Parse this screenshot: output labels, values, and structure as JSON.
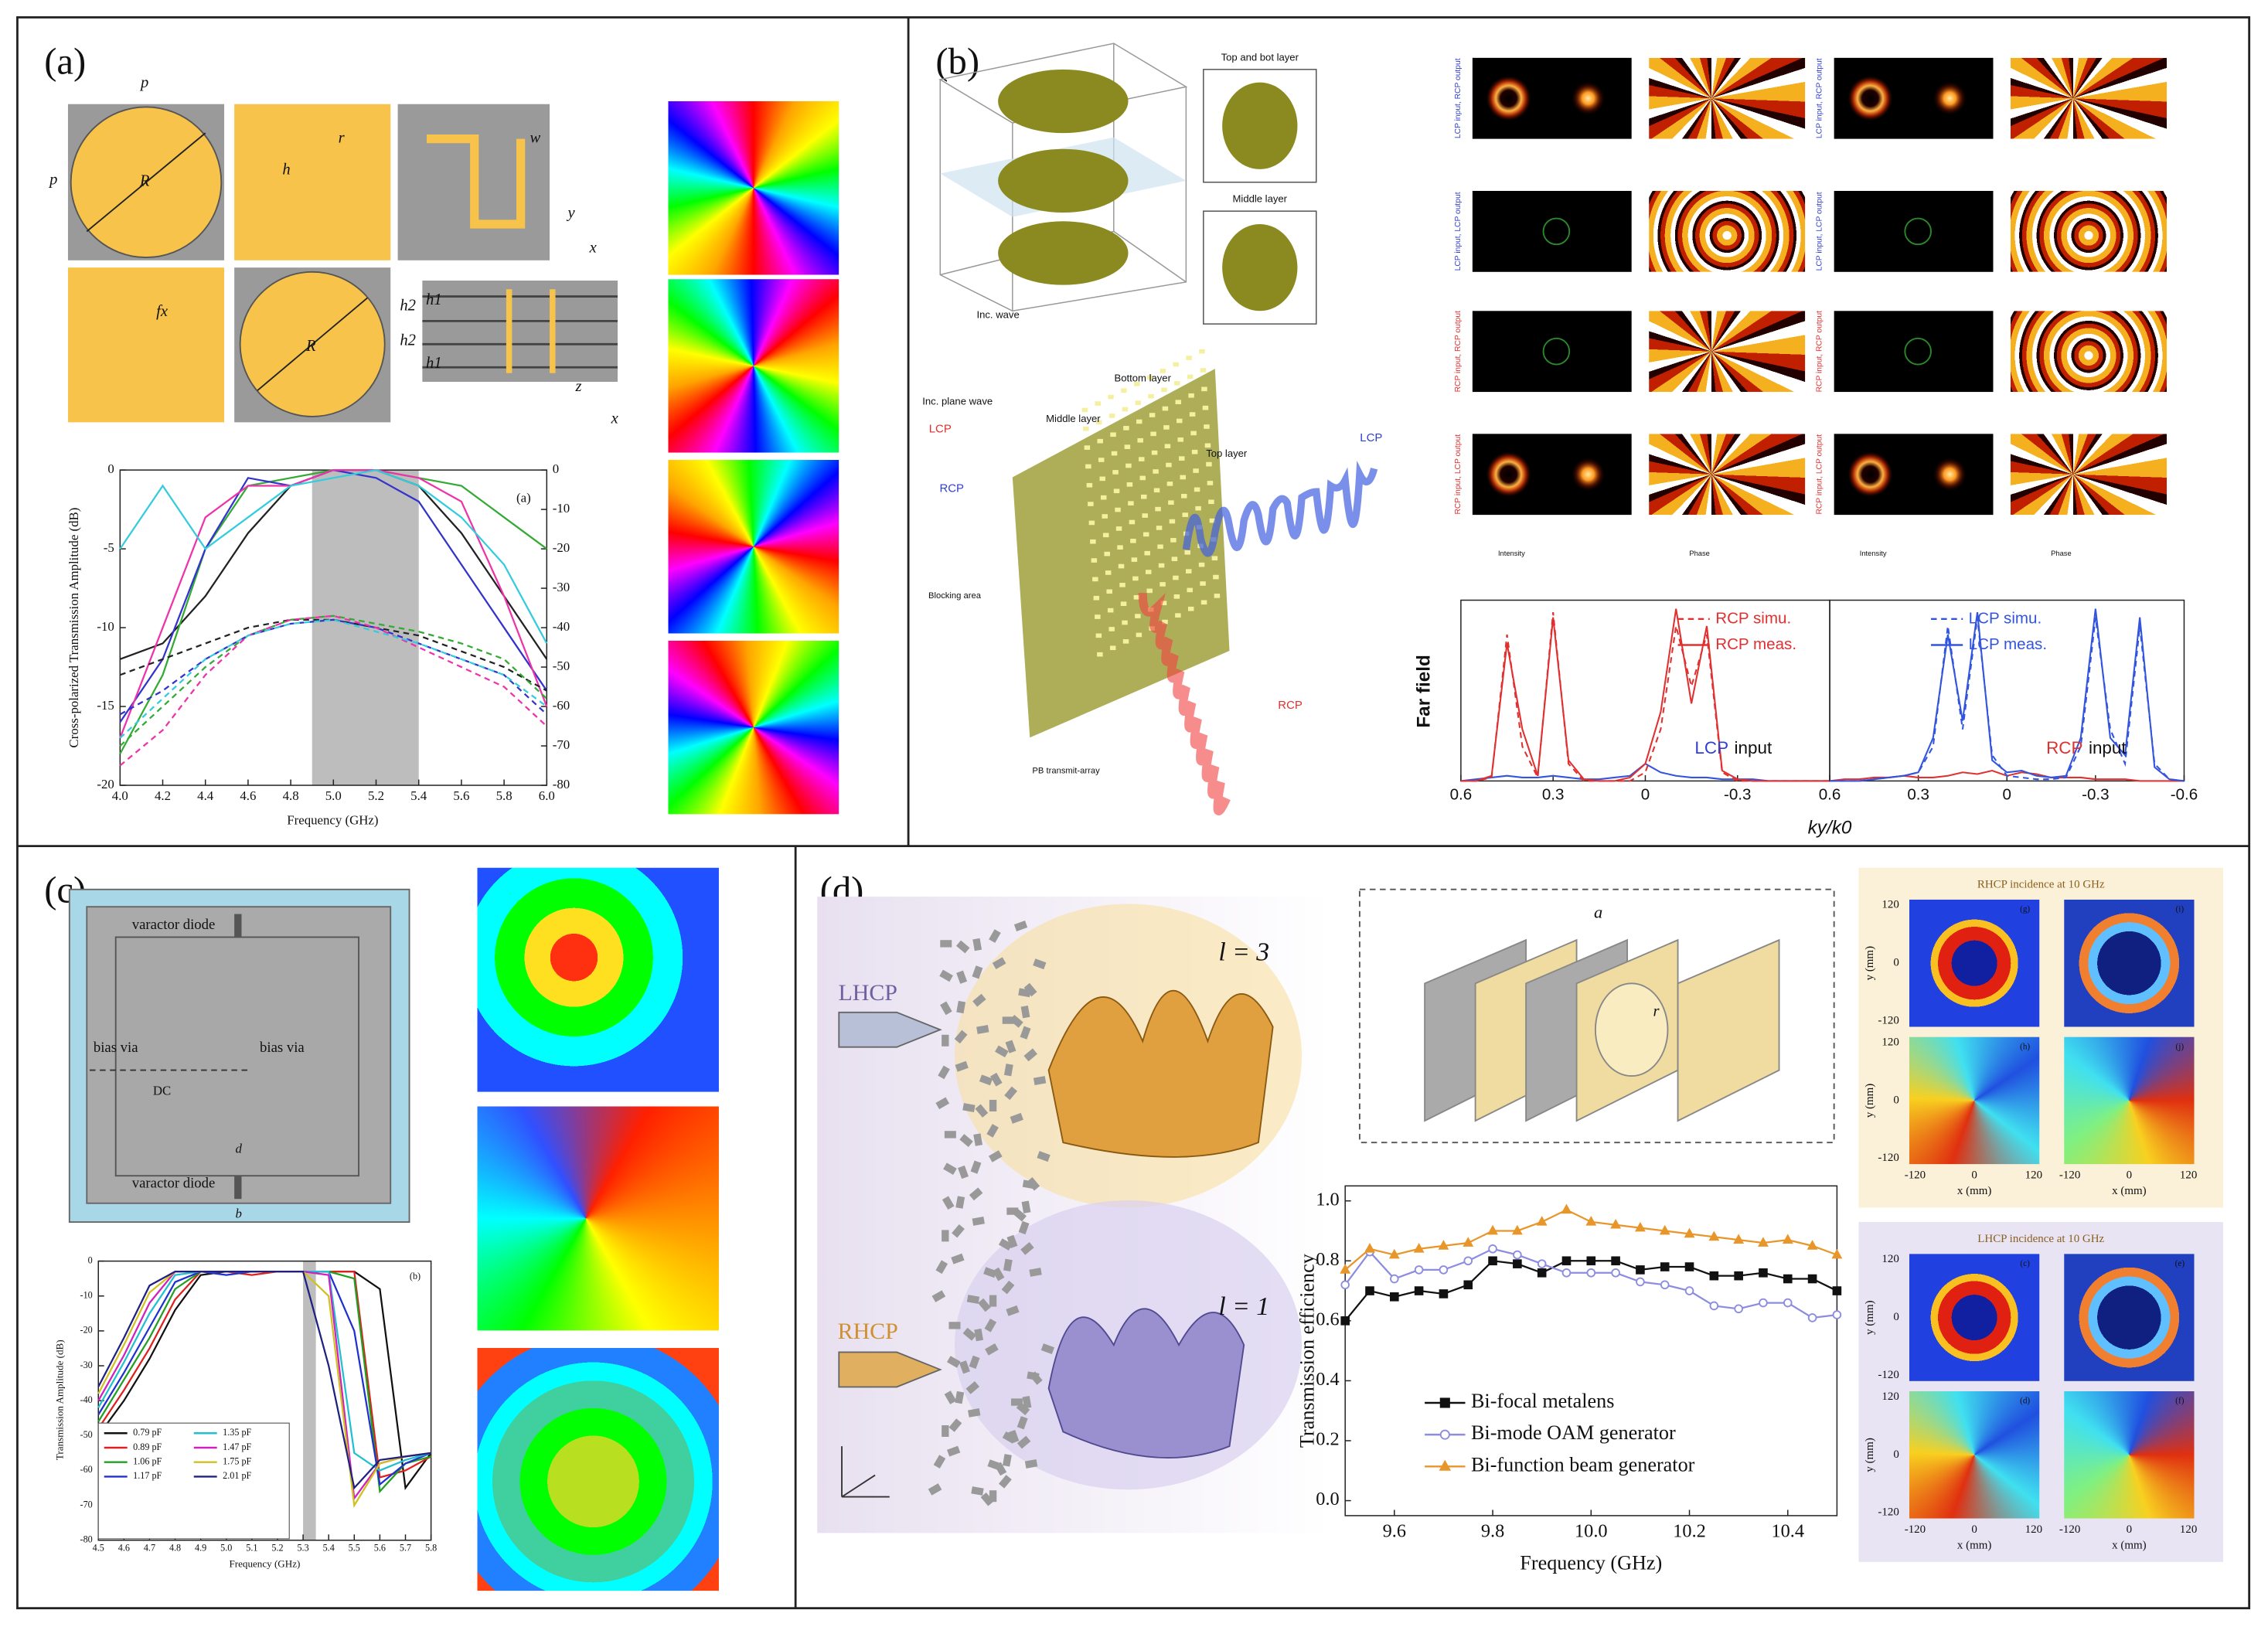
{
  "panel_a": {
    "label": "(a)",
    "cell_labels": [
      "p",
      "p",
      "R",
      "h",
      "r",
      "w",
      "fx",
      "R",
      "h2",
      "h1",
      "h2",
      "h1",
      "y",
      "x",
      "z",
      "x"
    ],
    "chart": {
      "type": "line",
      "tag": "(a)",
      "xlabel": "Frequency (GHz)",
      "ylabel": "Cross-polarized Transmission Amplitude (dB)",
      "x": [
        4.0,
        4.2,
        4.4,
        4.6,
        4.8,
        5.0,
        5.2,
        5.4,
        5.6,
        5.8,
        6.0
      ],
      "xlim": [
        4.0,
        6.0
      ],
      "xticks": [
        {
          "value": 4.0,
          "label": "4.0"
        },
        4.2,
        4.4,
        4.6,
        4.8,
        {
          "value": 5.0,
          "label": "5.0"
        },
        5.2,
        5.4,
        5.6,
        5.8,
        {
          "value": 6.0,
          "label": "6.0"
        }
      ],
      "ylim": [
        -20,
        0
      ],
      "yticks": [
        0,
        -5,
        -10,
        -15,
        -20
      ],
      "y2lim": [
        -80,
        0
      ],
      "y2ticks": [
        0,
        -10,
        -20,
        -30,
        -40,
        -50,
        -60,
        -70,
        -80
      ],
      "band": [
        4.9,
        5.4
      ],
      "series": [
        {
          "color": "#222222",
          "values": [
            -12,
            -11,
            -8,
            -4,
            -1,
            0,
            0,
            -1,
            -4,
            -8,
            -12
          ]
        },
        {
          "color": "#33aa33",
          "values": [
            -18,
            -13,
            -5,
            -1,
            -0.5,
            0,
            0,
            -0.5,
            -1,
            -3,
            -5
          ]
        },
        {
          "color": "#3333cc",
          "values": [
            -16,
            -12,
            -5,
            -0.5,
            -1,
            0,
            -0.5,
            -2,
            -6,
            -10,
            -14
          ]
        },
        {
          "color": "#ee33aa",
          "values": [
            -17,
            -10,
            -3,
            -1,
            -1,
            0,
            0,
            -0.5,
            -2,
            -8,
            -15
          ]
        },
        {
          "color": "#33ccdd",
          "values": [
            -5,
            -1,
            -5,
            -3,
            -1,
            -0.5,
            0,
            -1,
            -3,
            -6,
            -11
          ]
        },
        {
          "color": "#222222",
          "style": "dashed",
          "axis": "y2",
          "values": [
            -52,
            -48,
            -44,
            -40,
            -38,
            -38,
            -40,
            -42,
            -46,
            -50,
            -56
          ]
        },
        {
          "color": "#33aa33",
          "style": "dashed",
          "axis": "y2",
          "values": [
            -70,
            -60,
            -50,
            -42,
            -38,
            -37,
            -39,
            -41,
            -44,
            -48,
            -58
          ]
        },
        {
          "color": "#3333cc",
          "style": "dashed",
          "axis": "y2",
          "values": [
            -62,
            -56,
            -48,
            -42,
            -39,
            -38,
            -40,
            -44,
            -48,
            -52,
            -62
          ]
        },
        {
          "color": "#ee33aa",
          "style": "dashed",
          "axis": "y2",
          "values": [
            -75,
            -66,
            -52,
            -42,
            -38,
            -37,
            -40,
            -45,
            -50,
            -55,
            -65
          ]
        },
        {
          "color": "#33ccdd",
          "style": "dashed",
          "axis": "y2",
          "values": [
            -68,
            -58,
            -48,
            -42,
            -39,
            -38,
            -41,
            -44,
            -48,
            -52,
            -60
          ]
        }
      ]
    }
  },
  "panel_b": {
    "label": "(b)",
    "illus_labels": [
      "Top and bot layer",
      "Middle layer",
      "Inc. wave",
      "Bottom layer",
      "Middle layer",
      "Top layer",
      "Inc. plane wave",
      "LCP",
      "RCP",
      "Blocking area",
      "PB transmit-array",
      "LCP",
      "RCP"
    ],
    "row_labels": [
      "LCP input, RCP output",
      "LCP input, LCP output",
      "RCP input, RCP output",
      "RCP input, LCP output"
    ],
    "colorbar_labels": [
      "Intensity",
      "Phase",
      "Intensity",
      "Phase"
    ],
    "farfield": {
      "ylabel": "Far field",
      "xlabel": "ky/k0",
      "panels": [
        {
          "type": "line",
          "input_label": {
            "mode": "LCP",
            "word": "input"
          },
          "x": [
            0.6,
            0.55,
            0.5,
            0.45,
            0.4,
            0.35,
            0.3,
            0.25,
            0.2,
            0.15,
            0.1,
            0.05,
            0,
            -0.05,
            -0.1,
            -0.15,
            -0.2,
            -0.25,
            -0.3,
            -0.35,
            -0.4,
            -0.45,
            -0.5,
            -0.55,
            -0.6
          ],
          "xlim": [
            0.6,
            -0.6
          ],
          "xticks": [
            0.6,
            0.3,
            0,
            -0.3
          ],
          "ylim": [
            0,
            1.05
          ],
          "series": [
            {
              "color": "#3355dd",
              "values": [
                0,
                0.01,
                0.02,
                0.03,
                0.02,
                0.02,
                0.03,
                0.02,
                0.01,
                0.01,
                0.02,
                0.03,
                0.1,
                0.05,
                0.03,
                0.02,
                0.02,
                0.01,
                0.01,
                0.01,
                0,
                0,
                0,
                0,
                0
              ]
            },
            {
              "name": "RCP simu.",
              "color": "#e03030",
              "style": "dashed",
              "values": [
                0,
                0,
                0.02,
                0.85,
                0.2,
                0.02,
                0.98,
                0.1,
                0,
                0,
                0,
                0,
                0.05,
                0.3,
                0.9,
                0.55,
                0.85,
                0.05,
                0,
                0,
                0,
                0,
                0,
                0,
                0
              ]
            },
            {
              "name": "RCP meas.",
              "color": "#e03030",
              "values": [
                0,
                0,
                0.03,
                0.8,
                0.3,
                0.03,
                0.95,
                0.12,
                0.01,
                0,
                0,
                0.02,
                0.1,
                0.4,
                1.0,
                0.45,
                0.9,
                0.06,
                0.01,
                0,
                0,
                0,
                0,
                0,
                0
              ]
            }
          ]
        },
        {
          "type": "line",
          "input_label": {
            "mode": "RCP",
            "word": "input"
          },
          "x": [
            0.6,
            0.55,
            0.5,
            0.45,
            0.4,
            0.35,
            0.3,
            0.25,
            0.2,
            0.15,
            0.1,
            0.05,
            0,
            -0.05,
            -0.1,
            -0.15,
            -0.2,
            -0.25,
            -0.3,
            -0.35,
            -0.4,
            -0.45,
            -0.5,
            -0.55,
            -0.6
          ],
          "xlim": [
            0.6,
            -0.6
          ],
          "xticks": [
            0.6,
            0.3,
            0,
            -0.3,
            -0.6
          ],
          "ylim": [
            0,
            1.05
          ],
          "series": [
            {
              "color": "#e03030",
              "values": [
                0,
                0.01,
                0.01,
                0.02,
                0.02,
                0.03,
                0.02,
                0.02,
                0.03,
                0.05,
                0.04,
                0.06,
                0.03,
                0.05,
                0.04,
                0.02,
                0.02,
                0.02,
                0.01,
                0.01,
                0.01,
                0,
                0,
                0,
                0
              ]
            },
            {
              "name": "LCP simu.",
              "color": "#3355dd",
              "style": "dashed",
              "values": [
                0,
                0,
                0,
                0.01,
                0.02,
                0.03,
                0.05,
                0.2,
                0.9,
                0.3,
                0.95,
                0.15,
                0.03,
                0.02,
                0.01,
                0.01,
                0.02,
                0.2,
                0.95,
                0.3,
                0.1,
                0.9,
                0.1,
                0.01,
                0
              ]
            },
            {
              "name": "LCP meas.",
              "color": "#3355dd",
              "values": [
                0,
                0,
                0,
                0.01,
                0.02,
                0.03,
                0.05,
                0.25,
                0.85,
                0.35,
                0.98,
                0.12,
                0.05,
                0.06,
                0.03,
                0.02,
                0.03,
                0.25,
                1.0,
                0.25,
                0.15,
                0.95,
                0.08,
                0.01,
                0
              ]
            }
          ]
        }
      ]
    }
  },
  "panel_c": {
    "label": "(c)",
    "illus_labels": [
      "varactor diode",
      "varactor diode",
      "bias via",
      "bias via",
      "DC",
      "d",
      "b"
    ],
    "chart": {
      "type": "line",
      "tag": "(b)",
      "xlabel": "Frequency (GHz)",
      "ylabel": "Transmission Amplitude (dB)",
      "x": [
        4.5,
        4.6,
        4.7,
        4.8,
        4.9,
        5.0,
        5.1,
        5.2,
        5.3,
        5.4,
        5.5,
        5.6,
        5.7,
        5.8
      ],
      "xlim": [
        4.5,
        5.8
      ],
      "xticks": [
        4.5,
        4.6,
        4.7,
        4.8,
        4.9,
        {
          "value": 5.0,
          "label": "5.0"
        },
        5.1,
        5.2,
        5.3,
        5.4,
        5.5,
        5.6,
        5.7,
        5.8
      ],
      "ylim": [
        -80,
        0
      ],
      "yticks": [
        0,
        -10,
        -20,
        -30,
        -40,
        -50,
        -60,
        -70,
        -80
      ],
      "band": [
        5.3,
        5.35
      ],
      "series": [
        {
          "name": "0.79 pF",
          "color": "#111111",
          "values": [
            -50,
            -40,
            -28,
            -14,
            -4,
            -3,
            -3,
            -3,
            -3,
            -3,
            -3,
            -8,
            -65,
            -55
          ]
        },
        {
          "name": "0.89 pF",
          "color": "#e02020",
          "values": [
            -48,
            -37,
            -25,
            -11,
            -3,
            -3,
            -4,
            -3,
            -3,
            -3,
            -3,
            -62,
            -60,
            -56
          ]
        },
        {
          "name": "1.06 pF",
          "color": "#20a020",
          "values": [
            -46,
            -34,
            -22,
            -8,
            -3,
            -3,
            -3,
            -3,
            -3,
            -3,
            -5,
            -66,
            -58,
            -56
          ]
        },
        {
          "name": "1.17 pF",
          "color": "#2030d0",
          "values": [
            -44,
            -32,
            -19,
            -6,
            -3,
            -4,
            -3,
            -3,
            -3,
            -3,
            -20,
            -64,
            -58,
            -55
          ]
        },
        {
          "name": "1.35 pF",
          "color": "#20c0d0",
          "values": [
            -42,
            -29,
            -15,
            -4,
            -3,
            -3,
            -3,
            -3,
            -3,
            -3,
            -55,
            -60,
            -57,
            -55
          ]
        },
        {
          "name": "1.47 pF",
          "color": "#d020c0",
          "values": [
            -40,
            -27,
            -12,
            -3,
            -3,
            -3,
            -3,
            -3,
            -3,
            -4,
            -68,
            -58,
            -56,
            -55
          ]
        },
        {
          "name": "1.75 pF",
          "color": "#d0c020",
          "values": [
            -38,
            -24,
            -9,
            -3,
            -3,
            -3,
            -3,
            -3,
            -3,
            -10,
            -70,
            -58,
            -56,
            -55
          ]
        },
        {
          "name": "2.01 pF",
          "color": "#202080",
          "values": [
            -36,
            -22,
            -7,
            -3,
            -3,
            -3,
            -3,
            -3,
            -3,
            -30,
            -65,
            -57,
            -56,
            -55
          ]
        }
      ]
    }
  },
  "panel_d": {
    "label": "(d)",
    "illus_labels": [
      "LHCP",
      "RHCP",
      "l = 3",
      "l = 1",
      "a",
      "r"
    ],
    "map_titles": [
      "RHCP incidence at 10 GHz",
      "LHCP incidence at 10 GHz"
    ],
    "map_sublabels": [
      "(g)",
      "(i)",
      "(h)",
      "(j)",
      "(c)",
      "(e)",
      "(d)",
      "(f)"
    ],
    "map_axis": {
      "y": "y (mm)",
      "x": "x (mm)",
      "ticks": [
        120,
        0,
        -120
      ]
    },
    "chart": {
      "type": "line",
      "xlabel": "Frequency (GHz)",
      "ylabel": "Transmission efficiency",
      "x": [
        9.5,
        9.55,
        9.6,
        9.65,
        9.7,
        9.75,
        9.8,
        9.85,
        9.9,
        9.95,
        10.0,
        10.05,
        10.1,
        10.15,
        10.2,
        10.25,
        10.3,
        10.35,
        10.4,
        10.45,
        10.5
      ],
      "xlim": [
        9.5,
        10.5
      ],
      "xticks": [
        9.6,
        9.8,
        {
          "value": 10.0,
          "label": "10.0"
        },
        10.2,
        10.4
      ],
      "ylim": [
        -0.05,
        1.05
      ],
      "yticks": [
        {
          "value": 0,
          "label": "0.0"
        },
        0.2,
        0.4,
        0.6,
        0.8,
        {
          "value": 1,
          "label": "1.0"
        }
      ],
      "series": [
        {
          "name": "Bi-focal metalens",
          "color": "#111111",
          "marker": "square",
          "values": [
            0.6,
            0.7,
            0.68,
            0.7,
            0.69,
            0.72,
            0.8,
            0.79,
            0.76,
            0.8,
            0.8,
            0.8,
            0.77,
            0.78,
            0.78,
            0.75,
            0.75,
            0.76,
            0.74,
            0.74,
            0.7
          ]
        },
        {
          "name": "Bi-mode OAM generator",
          "color": "#8c8ce0",
          "marker": "circle",
          "values": [
            0.72,
            0.83,
            0.74,
            0.77,
            0.77,
            0.8,
            0.84,
            0.82,
            0.79,
            0.76,
            0.76,
            0.76,
            0.73,
            0.72,
            0.7,
            0.65,
            0.64,
            0.66,
            0.66,
            0.61,
            0.62
          ]
        },
        {
          "name": "Bi-function beam generator",
          "color": "#e8962a",
          "marker": "triangle",
          "values": [
            0.77,
            0.84,
            0.82,
            0.84,
            0.85,
            0.86,
            0.9,
            0.9,
            0.93,
            0.97,
            0.93,
            0.92,
            0.91,
            0.9,
            0.89,
            0.88,
            0.87,
            0.86,
            0.87,
            0.85,
            0.82
          ]
        }
      ]
    }
  }
}
